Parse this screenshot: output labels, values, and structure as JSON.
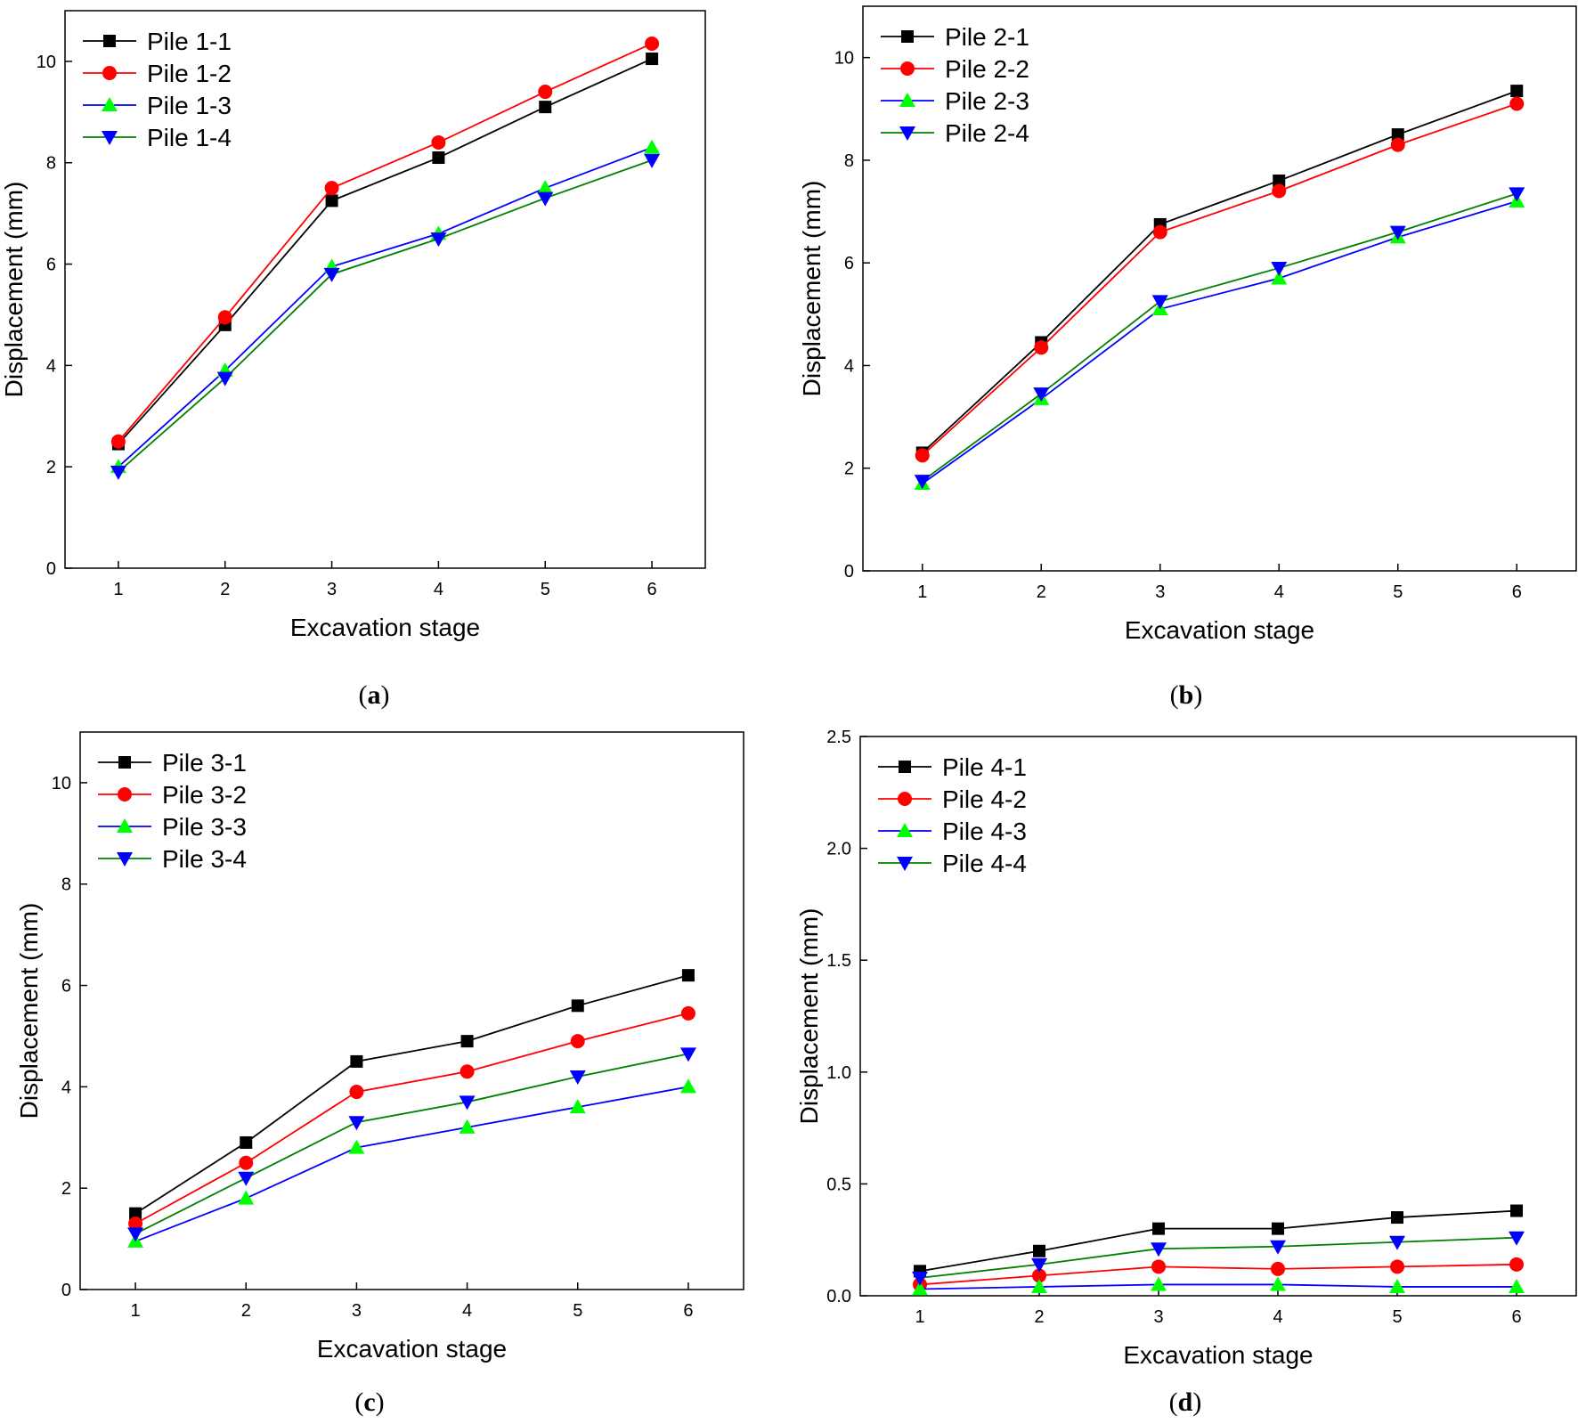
{
  "figure": {
    "panels": [
      {
        "caption_label": "a"
      },
      {
        "caption_label": "b"
      },
      {
        "caption_label": "c"
      },
      {
        "caption_label": "d"
      }
    ]
  },
  "chart_data": [
    {
      "type": "line",
      "panel": "a",
      "xlabel": "Excavation stage",
      "ylabel": "Displacement (mm)",
      "categories": [
        1,
        2,
        3,
        4,
        5,
        6
      ],
      "xlim": [
        0.5,
        6.5
      ],
      "ylim": [
        0,
        11
      ],
      "yticks": [
        0,
        2,
        4,
        6,
        8,
        10
      ],
      "legend_position": "top-left",
      "series": [
        {
          "name": "Pile 1-1",
          "color": "#000000",
          "marker": "square",
          "values": [
            2.45,
            4.8,
            7.25,
            8.1,
            9.1,
            10.05
          ]
        },
        {
          "name": "Pile 1-2",
          "color": "#ff0000",
          "marker": "circle",
          "values": [
            2.5,
            4.95,
            7.5,
            8.4,
            9.4,
            10.35
          ]
        },
        {
          "name": "Pile 1-3",
          "color": "#0000ff",
          "marker": "triangle-up",
          "marker_color": "#00ff00",
          "values": [
            2.0,
            3.9,
            5.95,
            6.6,
            7.5,
            8.3
          ]
        },
        {
          "name": "Pile 1-4",
          "color": "#008000",
          "marker": "triangle-down",
          "marker_color": "#0000ff",
          "values": [
            1.9,
            3.75,
            5.8,
            6.5,
            7.3,
            8.05
          ]
        }
      ]
    },
    {
      "type": "line",
      "panel": "b",
      "xlabel": "Excavation stage",
      "ylabel": "Displacement (mm)",
      "categories": [
        1,
        2,
        3,
        4,
        5,
        6
      ],
      "xlim": [
        0.5,
        6.5
      ],
      "ylim": [
        0,
        11
      ],
      "yticks": [
        0,
        2,
        4,
        6,
        8,
        10
      ],
      "legend_position": "top-left",
      "series": [
        {
          "name": "Pile 2-1",
          "color": "#000000",
          "marker": "square",
          "values": [
            2.3,
            4.45,
            6.75,
            7.6,
            8.5,
            9.35
          ]
        },
        {
          "name": "Pile 2-2",
          "color": "#ff0000",
          "marker": "circle",
          "values": [
            2.25,
            4.35,
            6.6,
            7.4,
            8.3,
            9.1
          ]
        },
        {
          "name": "Pile 2-3",
          "color": "#0000ff",
          "marker": "triangle-up",
          "marker_color": "#00ff00",
          "values": [
            1.7,
            3.35,
            5.1,
            5.7,
            6.5,
            7.2
          ]
        },
        {
          "name": "Pile 2-4",
          "color": "#008000",
          "marker": "triangle-down",
          "marker_color": "#0000ff",
          "values": [
            1.75,
            3.45,
            5.25,
            5.9,
            6.6,
            7.35
          ]
        }
      ]
    },
    {
      "type": "line",
      "panel": "c",
      "xlabel": "Excavation stage",
      "ylabel": "Displacement (mm)",
      "categories": [
        1,
        2,
        3,
        4,
        5,
        6
      ],
      "xlim": [
        0.5,
        6.5
      ],
      "ylim": [
        0,
        11
      ],
      "yticks": [
        0,
        2,
        4,
        6,
        8,
        10
      ],
      "legend_position": "top-left",
      "series": [
        {
          "name": "Pile 3-1",
          "color": "#000000",
          "marker": "square",
          "values": [
            1.5,
            2.9,
            4.5,
            4.9,
            5.6,
            6.2
          ]
        },
        {
          "name": "Pile 3-2",
          "color": "#ff0000",
          "marker": "circle",
          "values": [
            1.3,
            2.5,
            3.9,
            4.3,
            4.9,
            5.45
          ]
        },
        {
          "name": "Pile 3-3",
          "color": "#0000ff",
          "marker": "triangle-up",
          "marker_color": "#00ff00",
          "values": [
            0.95,
            1.8,
            2.8,
            3.2,
            3.6,
            4.0
          ]
        },
        {
          "name": "Pile 3-4",
          "color": "#008000",
          "marker": "triangle-down",
          "marker_color": "#0000ff",
          "values": [
            1.1,
            2.2,
            3.3,
            3.7,
            4.2,
            4.65
          ]
        }
      ]
    },
    {
      "type": "line",
      "panel": "d",
      "xlabel": "Excavation stage",
      "ylabel": "Displacement (mm)",
      "categories": [
        1,
        2,
        3,
        4,
        5,
        6
      ],
      "xlim": [
        0.5,
        6.5
      ],
      "ylim": [
        0,
        2.5
      ],
      "yticks": [
        0.0,
        0.5,
        1.0,
        1.5,
        2.0,
        2.5
      ],
      "ytick_labels": [
        "0.0",
        "0.5",
        "1.0",
        "1.5",
        "2.0",
        "2.5"
      ],
      "legend_position": "top-left",
      "series": [
        {
          "name": "Pile 4-1",
          "color": "#000000",
          "marker": "square",
          "values": [
            0.11,
            0.2,
            0.3,
            0.3,
            0.35,
            0.38
          ]
        },
        {
          "name": "Pile 4-2",
          "color": "#ff0000",
          "marker": "circle",
          "values": [
            0.05,
            0.09,
            0.13,
            0.12,
            0.13,
            0.14
          ]
        },
        {
          "name": "Pile 4-3",
          "color": "#0000ff",
          "marker": "triangle-up",
          "marker_color": "#00ff00",
          "values": [
            0.03,
            0.04,
            0.05,
            0.05,
            0.04,
            0.04
          ]
        },
        {
          "name": "Pile 4-4",
          "color": "#008000",
          "marker": "triangle-down",
          "marker_color": "#0000ff",
          "values": [
            0.08,
            0.14,
            0.21,
            0.22,
            0.24,
            0.26
          ]
        }
      ]
    }
  ]
}
